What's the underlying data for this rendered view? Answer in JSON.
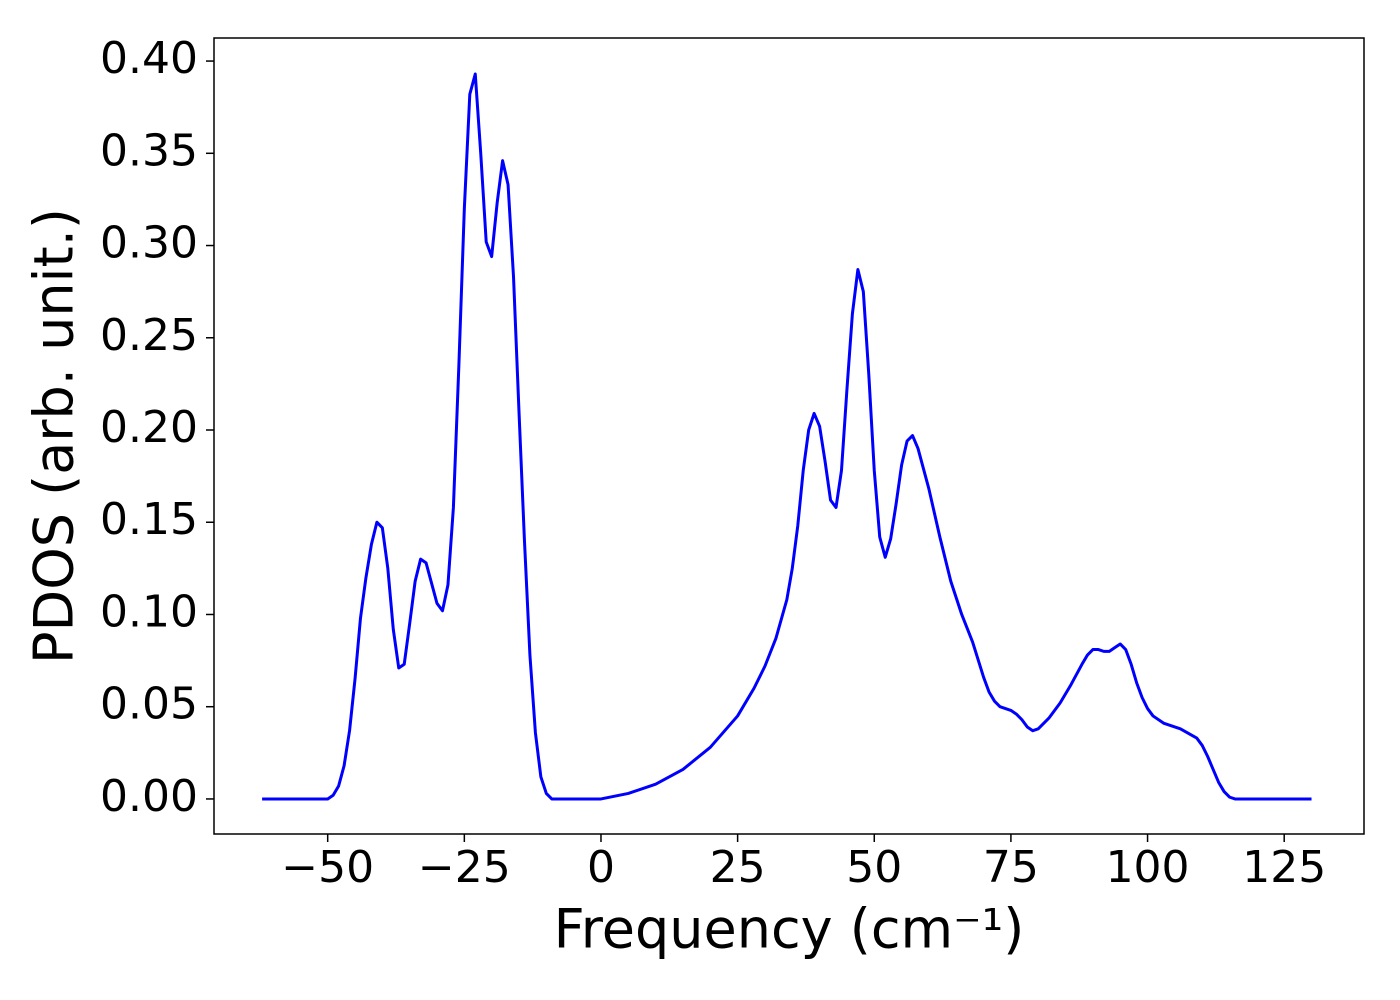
{
  "chart_data": {
    "type": "line",
    "xlabel": "Frequency (cm⁻¹)",
    "ylabel": "PDOS (arb. unit.)",
    "color": "#0000ff",
    "x": [
      -62,
      -50,
      -49,
      -48,
      -47,
      -46,
      -45,
      -44,
      -43,
      -42,
      -41,
      -40,
      -39,
      -38,
      -37,
      -36,
      -35,
      -34,
      -33,
      -32,
      -31,
      -30,
      -29,
      -28,
      -27,
      -26,
      -25,
      -24,
      -23,
      -22,
      -21,
      -20,
      -19,
      -18,
      -17,
      -16,
      -15,
      -14,
      -13,
      -12,
      -11,
      -10,
      -9,
      0,
      5,
      10,
      15,
      20,
      25,
      28,
      30,
      32,
      34,
      35,
      36,
      37,
      38,
      39,
      40,
      41,
      42,
      43,
      44,
      45,
      46,
      47,
      48,
      49,
      50,
      51,
      52,
      53,
      54,
      55,
      56,
      57,
      58,
      60,
      62,
      64,
      66,
      68,
      70,
      71,
      72,
      73,
      75,
      76,
      77,
      78,
      79,
      80,
      82,
      84,
      86,
      88,
      89,
      90,
      91,
      92,
      93,
      94,
      95,
      96,
      97,
      98,
      99,
      100,
      101,
      103,
      106,
      109,
      110,
      111,
      112,
      113,
      114,
      115,
      116,
      130
    ],
    "values": [
      0,
      0,
      0.002,
      0.007,
      0.018,
      0.037,
      0.065,
      0.098,
      0.12,
      0.138,
      0.15,
      0.147,
      0.125,
      0.092,
      0.071,
      0.073,
      0.095,
      0.118,
      0.13,
      0.128,
      0.117,
      0.106,
      0.102,
      0.116,
      0.158,
      0.235,
      0.32,
      0.382,
      0.393,
      0.35,
      0.302,
      0.294,
      0.323,
      0.346,
      0.333,
      0.283,
      0.21,
      0.14,
      0.078,
      0.036,
      0.012,
      0.003,
      0,
      0,
      0.003,
      0.008,
      0.016,
      0.028,
      0.045,
      0.06,
      0.072,
      0.087,
      0.108,
      0.125,
      0.148,
      0.178,
      0.2,
      0.209,
      0.202,
      0.183,
      0.162,
      0.158,
      0.178,
      0.222,
      0.263,
      0.287,
      0.275,
      0.23,
      0.178,
      0.142,
      0.131,
      0.141,
      0.16,
      0.181,
      0.194,
      0.197,
      0.19,
      0.168,
      0.142,
      0.118,
      0.1,
      0.085,
      0.066,
      0.058,
      0.053,
      0.05,
      0.048,
      0.046,
      0.043,
      0.039,
      0.037,
      0.038,
      0.044,
      0.052,
      0.062,
      0.073,
      0.078,
      0.081,
      0.081,
      0.08,
      0.08,
      0.082,
      0.084,
      0.081,
      0.073,
      0.063,
      0.055,
      0.049,
      0.045,
      0.041,
      0.038,
      0.033,
      0.029,
      0.023,
      0.016,
      0.009,
      0.004,
      0.001,
      0,
      0
    ],
    "xlim": [
      -70.8,
      139.6
    ],
    "ylim": [
      -0.019,
      0.4125
    ],
    "xticks": [
      {
        "value": -50,
        "label": "−50"
      },
      {
        "value": -25,
        "label": "−25"
      },
      0,
      25,
      50,
      75,
      100,
      125
    ],
    "yticks": [
      {
        "value": 0,
        "label": "0.00"
      },
      {
        "value": 0.05,
        "label": "0.05"
      },
      {
        "value": 0.1,
        "label": "0.10"
      },
      {
        "value": 0.15,
        "label": "0.15"
      },
      {
        "value": 0.2,
        "label": "0.20"
      },
      {
        "value": 0.25,
        "label": "0.25"
      },
      {
        "value": 0.3,
        "label": "0.30"
      },
      {
        "value": 0.35,
        "label": "0.35"
      },
      {
        "value": 0.4,
        "label": "0.40"
      }
    ]
  }
}
